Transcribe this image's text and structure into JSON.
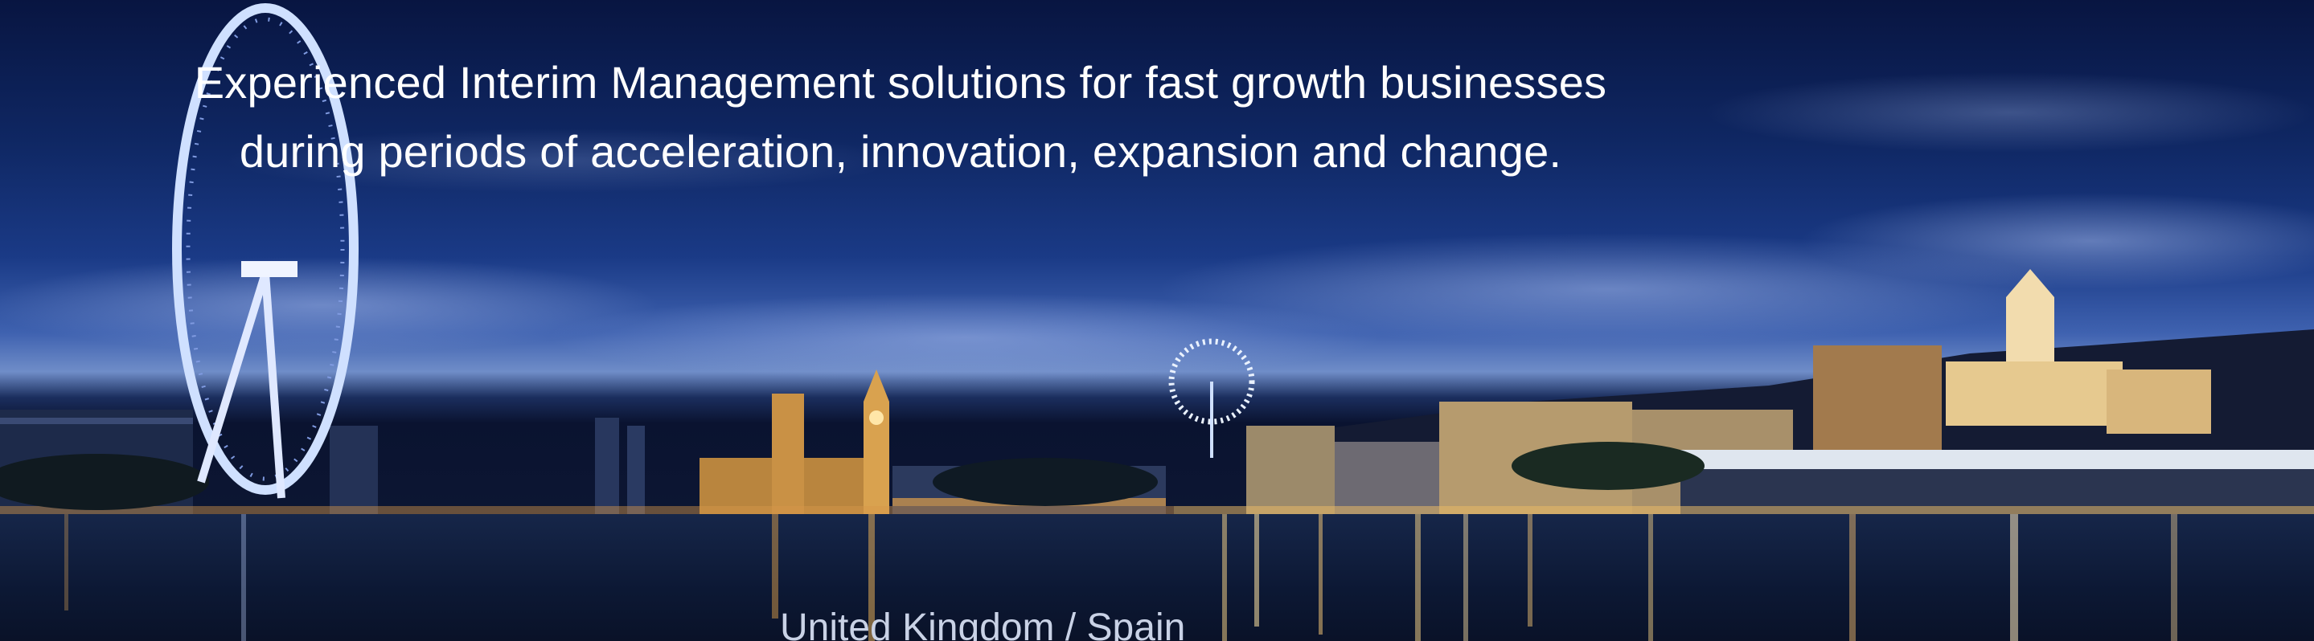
{
  "hero": {
    "headline_line1": "Experienced Interim Management solutions for fast growth businesses",
    "headline_line2": "during periods of acceleration, innovation, expansion and change.",
    "location_label": "United Kingdom / Spain"
  },
  "colors": {
    "sky_top": "#081541",
    "sky_mid": "#1a3a86",
    "water": "#0c1834",
    "light": "#ffd98a",
    "text": "#ffffff"
  },
  "icons": [
    "ferris-wheel-icon",
    "clock-tower-icon",
    "cathedral-icon"
  ]
}
